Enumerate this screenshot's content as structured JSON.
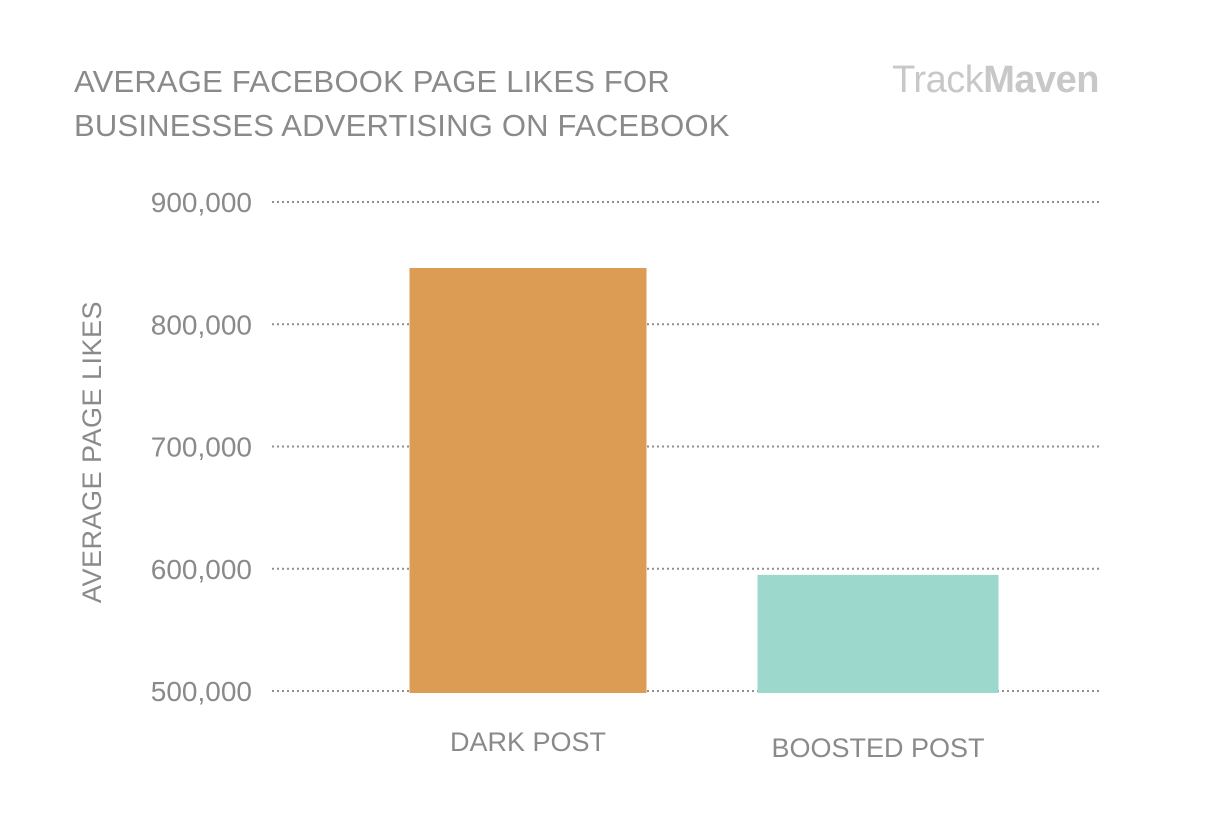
{
  "chart_data": {
    "type": "bar",
    "title_lines": [
      "AVERAGE FACEBOOK PAGE LIKES FOR",
      "BUSINESSES ADVERTISING ON FACEBOOK"
    ],
    "ylabel": "AVERAGE PAGE LIKES",
    "xlabel": "",
    "categories": [
      "DARK POST",
      "BOOSTED POST"
    ],
    "values": [
      846000,
      595000
    ],
    "colors": [
      "#dd9c54",
      "#9dd8cd"
    ],
    "ylim": [
      500000,
      900000
    ],
    "yticks": [
      500000,
      600000,
      700000,
      800000,
      900000
    ],
    "ytick_labels": [
      "500,000",
      "600,000",
      "700,000",
      "800,000",
      "900,000"
    ],
    "grid": "dotted horizontal",
    "legend": "none"
  },
  "brand": {
    "part1": "Track",
    "part2": "Maven"
  },
  "colors": {
    "text": "#8a8a8a",
    "grid": "#8f8f8f",
    "logo": "#c8c8c8"
  }
}
